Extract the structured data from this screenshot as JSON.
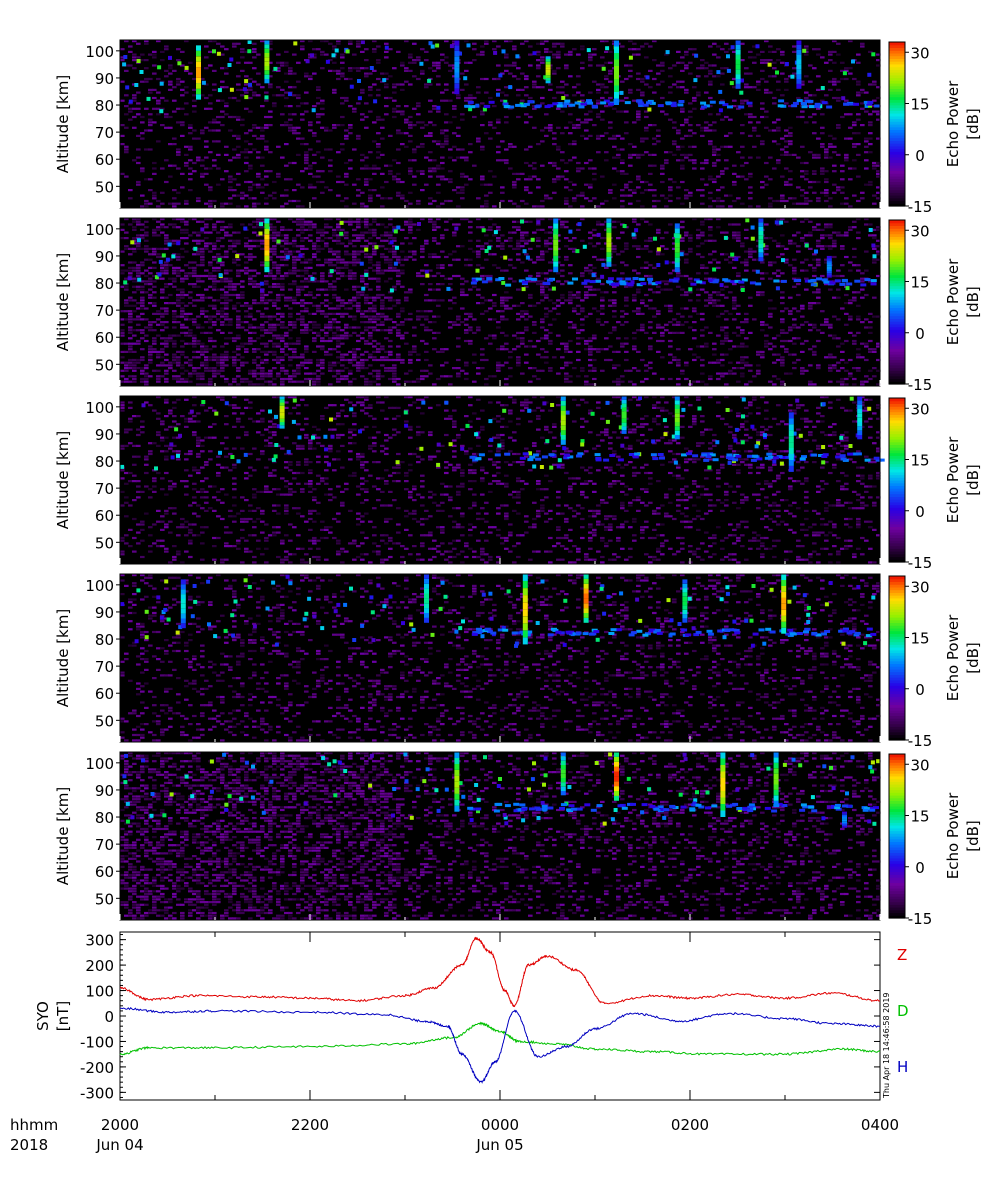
{
  "chart_data": [
    {
      "type": "heatmap",
      "panel": 1,
      "ylabel": "Altitude [km]",
      "yticks": [
        50,
        60,
        70,
        80,
        90,
        100
      ],
      "ylim": [
        42,
        104
      ],
      "colorbar_label_1": "Echo Power",
      "colorbar_label_2": "[dB]",
      "colorbar_ticks": [
        -15,
        0,
        15,
        30
      ],
      "clim": [
        -15,
        33
      ],
      "echo_layer_km": 81,
      "events": [
        {
          "t": 0.1,
          "alt": [
            82,
            102
          ],
          "db": 28
        },
        {
          "t": 0.19,
          "alt": [
            88,
            104
          ],
          "db": 22
        },
        {
          "t": 0.44,
          "alt": [
            84,
            104
          ],
          "db": 8
        },
        {
          "t": 0.56,
          "alt": [
            88,
            98
          ],
          "db": 24
        },
        {
          "t": 0.65,
          "alt": [
            80,
            104
          ],
          "db": 20
        },
        {
          "t": 0.81,
          "alt": [
            86,
            104
          ],
          "db": 16
        },
        {
          "t": 0.89,
          "alt": [
            86,
            104
          ],
          "db": 10
        }
      ]
    },
    {
      "type": "heatmap",
      "panel": 2,
      "ylabel": "Altitude [km]",
      "yticks": [
        50,
        60,
        70,
        80,
        90,
        100
      ],
      "ylim": [
        42,
        104
      ],
      "colorbar_label_1": "Echo Power",
      "colorbar_label_2": "[dB]",
      "colorbar_ticks": [
        -15,
        0,
        15,
        30
      ],
      "clim": [
        -15,
        33
      ],
      "echo_layer_km": 81,
      "events": [
        {
          "t": 0.19,
          "alt": [
            84,
            104
          ],
          "db": 28
        },
        {
          "t": 0.57,
          "alt": [
            84,
            104
          ],
          "db": 20
        },
        {
          "t": 0.64,
          "alt": [
            86,
            104
          ],
          "db": 22
        },
        {
          "t": 0.73,
          "alt": [
            84,
            102
          ],
          "db": 18
        },
        {
          "t": 0.84,
          "alt": [
            88,
            104
          ],
          "db": 14
        },
        {
          "t": 0.93,
          "alt": [
            82,
            90
          ],
          "db": 8
        }
      ]
    },
    {
      "type": "heatmap",
      "panel": 3,
      "ylabel": "Altitude [km]",
      "yticks": [
        50,
        60,
        70,
        80,
        90,
        100
      ],
      "ylim": [
        42,
        104
      ],
      "colorbar_label_1": "Echo Power",
      "colorbar_label_2": "[dB]",
      "colorbar_ticks": [
        -15,
        0,
        15,
        30
      ],
      "clim": [
        -15,
        33
      ],
      "echo_layer_km": 82,
      "events": [
        {
          "t": 0.21,
          "alt": [
            92,
            104
          ],
          "db": 24
        },
        {
          "t": 0.58,
          "alt": [
            86,
            104
          ],
          "db": 22
        },
        {
          "t": 0.66,
          "alt": [
            90,
            104
          ],
          "db": 18
        },
        {
          "t": 0.73,
          "alt": [
            88,
            104
          ],
          "db": 20
        },
        {
          "t": 0.88,
          "alt": [
            76,
            98
          ],
          "db": 14
        },
        {
          "t": 0.97,
          "alt": [
            88,
            104
          ],
          "db": 12
        }
      ]
    },
    {
      "type": "heatmap",
      "panel": 4,
      "ylabel": "Altitude [km]",
      "yticks": [
        50,
        60,
        70,
        80,
        90,
        100
      ],
      "ylim": [
        42,
        104
      ],
      "colorbar_label_1": "Echo Power",
      "colorbar_label_2": "[dB]",
      "colorbar_ticks": [
        -15,
        0,
        15,
        30
      ],
      "clim": [
        -15,
        33
      ],
      "echo_layer_km": 83,
      "events": [
        {
          "t": 0.08,
          "alt": [
            84,
            102
          ],
          "db": 12
        },
        {
          "t": 0.4,
          "alt": [
            86,
            104
          ],
          "db": 14
        },
        {
          "t": 0.53,
          "alt": [
            78,
            104
          ],
          "db": 26
        },
        {
          "t": 0.61,
          "alt": [
            86,
            104
          ],
          "db": 30
        },
        {
          "t": 0.74,
          "alt": [
            86,
            102
          ],
          "db": 16
        },
        {
          "t": 0.87,
          "alt": [
            82,
            104
          ],
          "db": 28
        }
      ]
    },
    {
      "type": "heatmap",
      "panel": 5,
      "ylabel": "Altitude [km]",
      "yticks": [
        50,
        60,
        70,
        80,
        90,
        100
      ],
      "ylim": [
        42,
        104
      ],
      "colorbar_label_1": "Echo Power",
      "colorbar_label_2": "[dB]",
      "colorbar_ticks": [
        -15,
        0,
        15,
        30
      ],
      "clim": [
        -15,
        33
      ],
      "echo_layer_km": 84,
      "events": [
        {
          "t": 0.44,
          "alt": [
            82,
            104
          ],
          "db": 22
        },
        {
          "t": 0.58,
          "alt": [
            88,
            104
          ],
          "db": 18
        },
        {
          "t": 0.65,
          "alt": [
            86,
            104
          ],
          "db": 32
        },
        {
          "t": 0.79,
          "alt": [
            80,
            104
          ],
          "db": 26
        },
        {
          "t": 0.86,
          "alt": [
            84,
            104
          ],
          "db": 20
        },
        {
          "t": 0.95,
          "alt": [
            76,
            82
          ],
          "db": 8
        }
      ]
    },
    {
      "type": "line",
      "panel": 6,
      "ylabel_1": "SYO",
      "ylabel_2": "[nT]",
      "ylim": [
        -330,
        330
      ],
      "yticks": [
        -300,
        -200,
        -100,
        0,
        100,
        200,
        300
      ],
      "x_unit": "hours since 2000 Jun 04",
      "xlim": [
        0,
        8
      ],
      "series": [
        {
          "name": "Z",
          "color": "#e00000",
          "x": [
            0,
            0.3,
            0.8,
            1.5,
            2.0,
            2.5,
            3.0,
            3.3,
            3.6,
            3.75,
            3.9,
            4.05,
            4.15,
            4.3,
            4.5,
            4.8,
            5.1,
            5.6,
            6.0,
            6.5,
            7.0,
            7.5,
            8.0
          ],
          "values": [
            110,
            65,
            80,
            75,
            70,
            60,
            80,
            110,
            200,
            305,
            250,
            100,
            40,
            200,
            235,
            180,
            50,
            80,
            70,
            85,
            70,
            90,
            60
          ]
        },
        {
          "name": "D",
          "color": "#00c000",
          "x": [
            0,
            0.3,
            1.0,
            2.0,
            3.0,
            3.5,
            3.8,
            4.0,
            4.2,
            4.6,
            5.0,
            5.6,
            6.2,
            7.0,
            7.6,
            8.0
          ],
          "values": [
            -150,
            -125,
            -125,
            -120,
            -110,
            -85,
            -30,
            -60,
            -100,
            -110,
            -130,
            -140,
            -150,
            -150,
            -130,
            -140
          ]
        },
        {
          "name": "H",
          "color": "#0000c0",
          "x": [
            0,
            0.5,
            1.0,
            2.0,
            2.8,
            3.2,
            3.45,
            3.6,
            3.8,
            3.95,
            4.15,
            4.4,
            4.7,
            5.0,
            5.4,
            5.9,
            6.4,
            7.0,
            7.5,
            8.0
          ],
          "values": [
            30,
            15,
            20,
            15,
            5,
            -20,
            -40,
            -150,
            -260,
            -180,
            20,
            -160,
            -120,
            -50,
            10,
            -20,
            10,
            -10,
            -30,
            -40
          ]
        }
      ]
    }
  ],
  "time_axis": {
    "row1_label": "hhmm",
    "row2_label": "2018",
    "ticks": [
      {
        "label": "2000",
        "date": "Jun 04"
      },
      {
        "label": "2200",
        "date": ""
      },
      {
        "label": "0000",
        "date": "Jun 05"
      },
      {
        "label": "0200",
        "date": ""
      },
      {
        "label": "0400",
        "date": ""
      }
    ]
  },
  "stamp": "Thu Apr 18 14:46:58 2019"
}
